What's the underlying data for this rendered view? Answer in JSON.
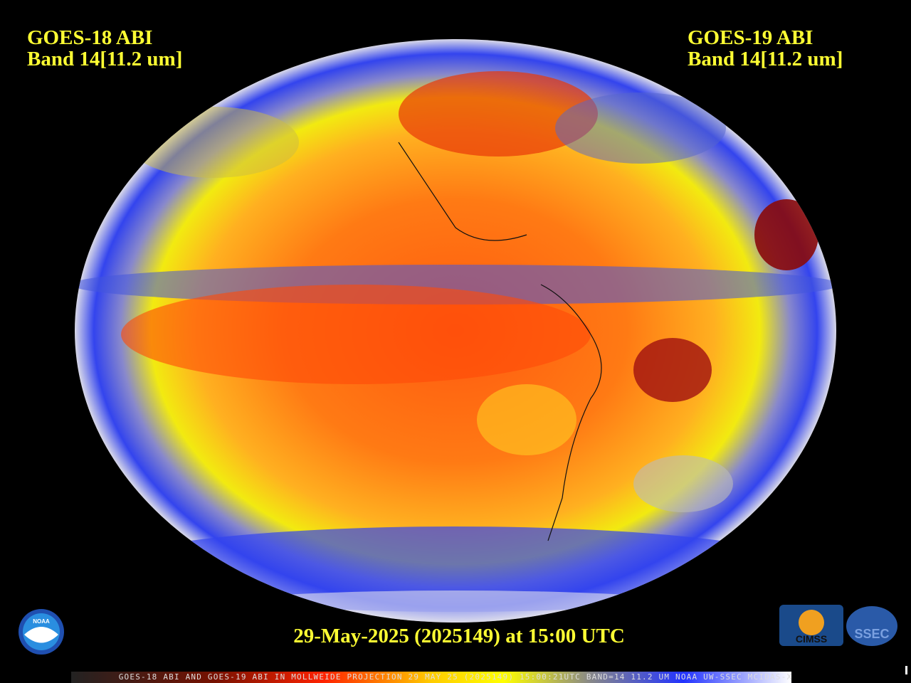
{
  "left_label": {
    "line1": "GOES-18 ABI",
    "line2": "Band 14[11.2 um]"
  },
  "right_label": {
    "line1": "GOES-19 ABI",
    "line2": "Band 14[11.2 um]"
  },
  "timestamp": "29-May-2025 (2025149) at 15:00 UTC",
  "footer": "GOES-18 ABI AND GOES-19 ABI IN MOLLWEIDE PROJECTION 29 MAY 25 (2025149) 15:00:21UTC BAND=14 11.2 UM NOAA UW-SSEC MCIDAS-X",
  "logos": {
    "noaa": "NOAA",
    "cimss": "CIMSS",
    "ssec": "SSEC"
  }
}
